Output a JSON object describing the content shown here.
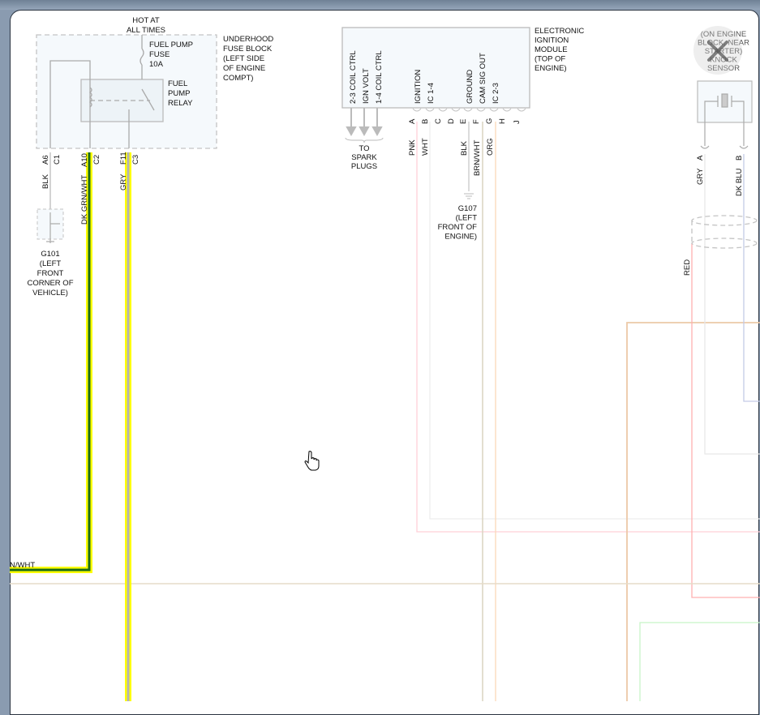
{
  "fuse_block": {
    "hot_label": [
      "HOT AT",
      "ALL TIMES"
    ],
    "fuse_label": [
      "FUEL PUMP",
      "FUSE",
      "10A"
    ],
    "relay_label": [
      "FUEL",
      "PUMP",
      "RELAY"
    ],
    "block_label": [
      "UNDERHOOD",
      "FUSE BLOCK",
      "(LEFT SIDE",
      "OF ENGINE",
      "COMPT)"
    ],
    "pins": [
      "A6",
      "C1",
      "A10",
      "C2",
      "F11",
      "C3"
    ]
  },
  "wires_left": [
    "BLK",
    "DK GRN/WHT",
    "GRY",
    "N/WHT"
  ],
  "ground_g101": [
    "G101",
    "(LEFT",
    "FRONT",
    "CORNER OF",
    "VEHICLE)"
  ],
  "ignition_module": {
    "label": [
      "ELECTRONIC",
      "IGNITION",
      "MODULE",
      "(TOP OF",
      "ENGINE)"
    ],
    "pin_functions": [
      "2-3 COIL CTRL",
      "IGN VOLT",
      "1-4 COIL CTRL",
      "IGNITION",
      "IC 1-4",
      "GROUND",
      "CAM SIG OUT",
      "IC 2-3"
    ],
    "pins": [
      "A",
      "B",
      "C",
      "D",
      "E",
      "F",
      "G",
      "H",
      "J"
    ],
    "wire_colors": [
      "PNK",
      "WHT",
      "BLK",
      "BRN/WHT",
      "ORG"
    ],
    "spark_label": [
      "TO",
      "SPARK",
      "PLUGS"
    ]
  },
  "ground_g107": [
    "G107",
    "(LEFT",
    "FRONT OF",
    "ENGINE)"
  ],
  "knock_sensor": {
    "label": [
      "(ON ENGINE",
      "BLOCK, NEAR",
      "STARTER)",
      "KNOCK",
      "SENSOR"
    ],
    "pins": [
      "A",
      "B"
    ],
    "wires": [
      "GRY",
      "DK BLU",
      "RED"
    ]
  },
  "colors": {
    "yellow_highlight": "#ffff00",
    "dk_green": "#1a6b1a",
    "gray": "#b0b0b0",
    "pink": "#ffc8d0",
    "orange": "#f8c89a",
    "tan": "#ddd3bd",
    "red": "#ff9a9a",
    "blue": "#b8c0e0",
    "green": "#b8f0b8"
  },
  "icons": {
    "close": "close-icon",
    "cursor": "hand-pointer-icon"
  }
}
